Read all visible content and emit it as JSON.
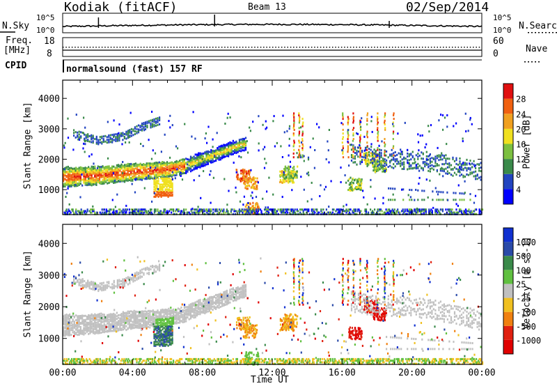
{
  "header": {
    "station": "Kodiak (fitACF)",
    "beam": "Beam 13",
    "date": "02/Sep/2014"
  },
  "status_panels": {
    "nsky_label": "N.Sky",
    "nsky_ticks": [
      "10^5",
      "10^0"
    ],
    "nsearch_label": "N.Search",
    "nsearch_ticks": [
      "10^5",
      "10^0"
    ],
    "freq_label": "Freq.",
    "freq_unit": "[MHz]",
    "freq_ticks": [
      "18",
      "8"
    ],
    "nave_label": "Nave",
    "nave_ticks": [
      "60",
      "0"
    ],
    "cpid_label": "CPID",
    "cpid_text": "normalsound (fast) 157 RF"
  },
  "chart_data": [
    {
      "type": "heatmap",
      "title": "",
      "xlabel": "",
      "ylabel": "Slant Range [km]",
      "ylim": [
        180,
        4600
      ],
      "yticks": [
        1000,
        2000,
        3000,
        4000
      ],
      "colorbar": {
        "label": "Power [dB]",
        "ticks": [
          4,
          8,
          12,
          16,
          20,
          24,
          28
        ],
        "colors": [
          "#0000ff",
          "#2244c0",
          "#3a8a4a",
          "#7cc040",
          "#f0e020",
          "#f0a020",
          "#f06010",
          "#e01010"
        ]
      },
      "features": [
        {
          "name": "main band",
          "x": [
            0.0,
            2.0,
            4.0,
            6.0,
            7.0,
            8.0,
            9.0,
            10.0,
            10.5
          ],
          "y": [
            1450,
            1500,
            1620,
            1700,
            1820,
            2050,
            2250,
            2480,
            2560
          ],
          "value": 12
        },
        {
          "name": "upper band",
          "x": [
            0.5,
            2.0,
            3.5,
            4.5,
            5.5
          ],
          "y": [
            2900,
            2650,
            2800,
            3100,
            3300
          ],
          "value": 8
        },
        {
          "name": "afternoon band",
          "x": [
            16.5,
            17.5,
            19.0,
            21.0,
            24.0
          ],
          "y": [
            2200,
            2100,
            2050,
            1950,
            1600
          ],
          "value": 8
        },
        {
          "name": "near range",
          "x": [
            0.0,
            6.0,
            12.0,
            18.0,
            24.0
          ],
          "y": [
            300,
            300,
            300,
            300,
            300
          ],
          "value": 10
        }
      ]
    },
    {
      "type": "heatmap",
      "title": "",
      "xlabel": "Time UT",
      "ylabel": "Slant Range [km]",
      "ylim": [
        180,
        4600
      ],
      "yticks": [
        1000,
        2000,
        3000,
        4000
      ],
      "xticks": [
        "00:00",
        "04:00",
        "08:00",
        "12:00",
        "16:00",
        "20:00",
        "00:00"
      ],
      "colorbar": {
        "label": "Velocity [m s^-1]",
        "ticks": [
          1000,
          500,
          100,
          25,
          -25,
          -100,
          -500,
          -1000
        ],
        "colors": [
          "#1030d0",
          "#2a4aa8",
          "#3a8a4a",
          "#60c040",
          "#c0c0c0",
          "#f0c020",
          "#f08010",
          "#e02010",
          "#e00000"
        ]
      },
      "features": [
        {
          "name": "ground scatter band",
          "x": [
            0.0,
            4.0,
            8.0,
            10.5
          ],
          "y": [
            1450,
            1600,
            2050,
            2560
          ],
          "value": 0
        },
        {
          "name": "receding patch",
          "x": [
            5.5,
            6.0
          ],
          "y": [
            1100,
            900
          ],
          "value": 200
        },
        {
          "name": "approaching streaks",
          "x": [
            16.2,
            17.0,
            18.0
          ],
          "y": [
            1500,
            2000,
            2300
          ],
          "value": -500
        }
      ]
    }
  ]
}
